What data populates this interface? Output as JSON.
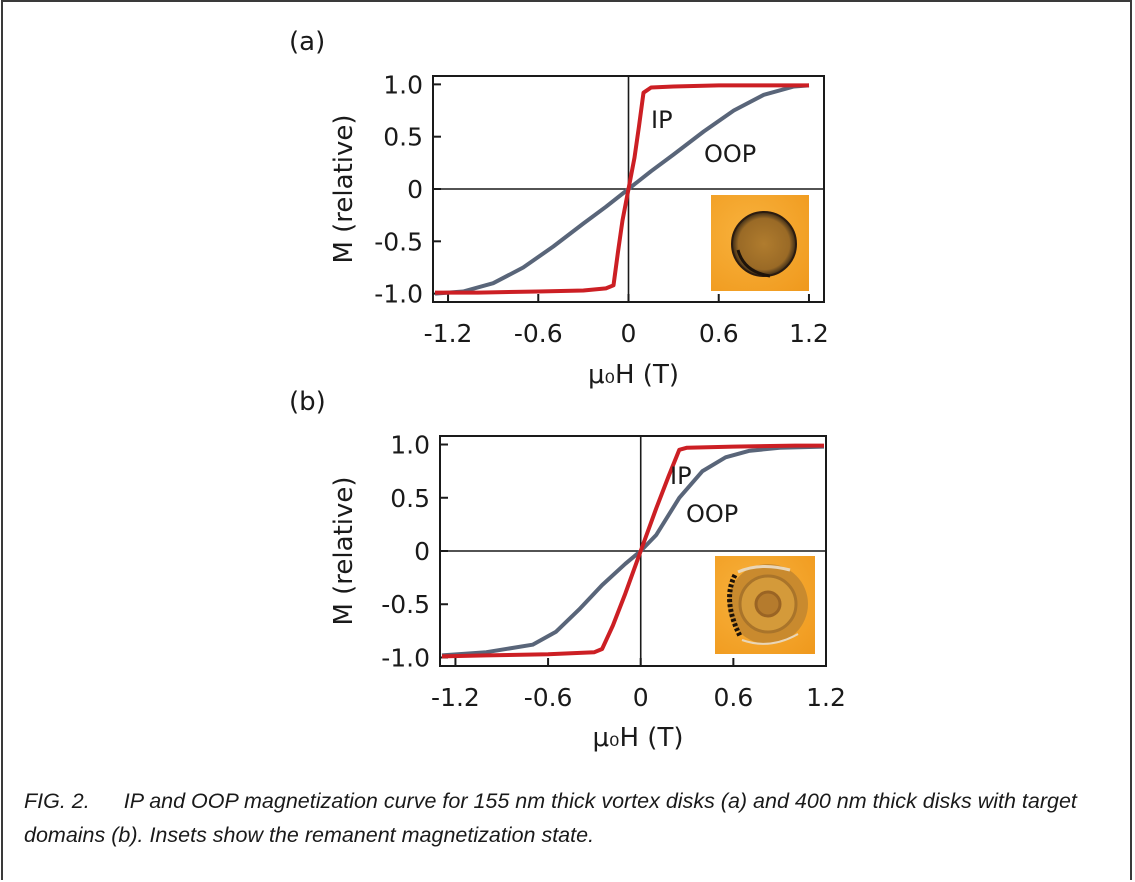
{
  "caption": {
    "label": "FIG. 2.",
    "text": "IP and OOP magnetization curve for 155 nm thick vortex disks (a) and 400 nm thick disks with target domains (b). Insets show the remanent magnetization state."
  },
  "colors": {
    "IP": "#cc1f24",
    "OOP": "#596579",
    "axis": "#1a1a1a",
    "inset_bg": "#f4a22a"
  },
  "chart_data": [
    {
      "panel": "(a)",
      "type": "line",
      "xlabel": "μ₀H (T)",
      "ylabel": "M (relative)",
      "xlim": [
        -1.3,
        1.3
      ],
      "ylim": [
        -1.08,
        1.08
      ],
      "xticks": [
        -1.2,
        -0.6,
        0,
        0.6,
        1.2
      ],
      "xtick_labels": [
        "-1.2",
        "-0.6",
        "0",
        "0.6",
        "1.2"
      ],
      "yticks": [
        1.0,
        0.5,
        0,
        -0.5,
        -1.0
      ],
      "ytick_labels": [
        "1.0",
        "0.5",
        "0",
        "-0.5",
        "-1.0"
      ],
      "inset": "disk-vortex",
      "series": [
        {
          "name": "IP",
          "x": [
            -1.3,
            -1.0,
            -0.6,
            -0.3,
            -0.15,
            -0.1,
            -0.07,
            -0.04,
            0,
            0.04,
            0.07,
            0.1,
            0.15,
            0.3,
            0.6,
            1.0,
            1.2
          ],
          "y": [
            -0.99,
            -0.99,
            -0.98,
            -0.97,
            -0.95,
            -0.92,
            -0.6,
            -0.3,
            0,
            0.3,
            0.6,
            0.92,
            0.97,
            0.98,
            0.99,
            0.99,
            0.99
          ]
        },
        {
          "name": "OOP",
          "x": [
            -1.3,
            -1.1,
            -0.9,
            -0.7,
            -0.5,
            -0.3,
            -0.15,
            0,
            0.15,
            0.3,
            0.5,
            0.7,
            0.9,
            1.1,
            1.2
          ],
          "y": [
            -1.0,
            -0.98,
            -0.9,
            -0.75,
            -0.55,
            -0.33,
            -0.17,
            0,
            0.17,
            0.33,
            0.55,
            0.75,
            0.9,
            0.98,
            0.99
          ]
        }
      ],
      "annotations": [
        "IP",
        "OOP"
      ]
    },
    {
      "panel": "(b)",
      "type": "line",
      "xlabel": "μ₀H (T)",
      "ylabel": "M (relative)",
      "xlim": [
        -1.3,
        1.2
      ],
      "ylim": [
        -1.08,
        1.08
      ],
      "xticks": [
        -1.2,
        -0.6,
        0,
        0.6,
        1.2
      ],
      "xtick_labels": [
        "-1.2",
        "-0.6",
        "0",
        "0.6",
        "1.2"
      ],
      "yticks": [
        1.0,
        0.5,
        0,
        -0.5,
        -1.0
      ],
      "ytick_labels": [
        "1.0",
        "0.5",
        "0",
        "-0.5",
        "-1.0"
      ],
      "inset": "disk-target",
      "series": [
        {
          "name": "IP",
          "x": [
            -1.3,
            -1.0,
            -0.6,
            -0.3,
            -0.25,
            -0.18,
            -0.1,
            0,
            0.1,
            0.18,
            0.25,
            0.3,
            0.6,
            1.0,
            1.2
          ],
          "y": [
            -0.99,
            -0.98,
            -0.97,
            -0.95,
            -0.92,
            -0.7,
            -0.4,
            0,
            0.4,
            0.7,
            0.95,
            0.97,
            0.98,
            0.99,
            0.99
          ]
        },
        {
          "name": "OOP",
          "x": [
            -1.3,
            -1.0,
            -0.7,
            -0.55,
            -0.4,
            -0.25,
            -0.1,
            0,
            0.1,
            0.25,
            0.4,
            0.55,
            0.7,
            0.9,
            1.2
          ],
          "y": [
            -0.98,
            -0.95,
            -0.88,
            -0.76,
            -0.55,
            -0.32,
            -0.12,
            0,
            0.15,
            0.5,
            0.75,
            0.88,
            0.94,
            0.97,
            0.98
          ]
        }
      ],
      "annotations": [
        "IP",
        "OOP"
      ]
    }
  ]
}
